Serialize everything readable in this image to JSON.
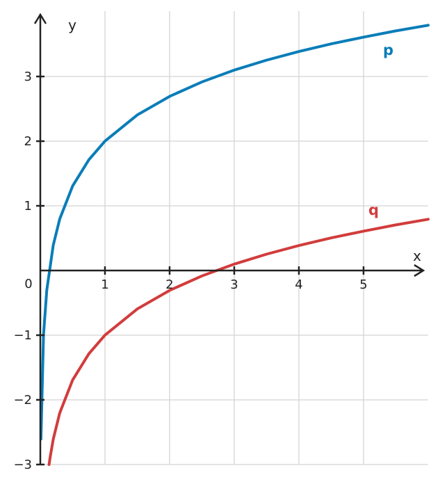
{
  "chart_data": {
    "type": "line",
    "title": "",
    "xlabel": "x",
    "ylabel": "y",
    "xlim": [
      0,
      6
    ],
    "ylim": [
      -3,
      4
    ],
    "x_ticks": [
      1,
      2,
      3,
      4,
      5
    ],
    "x_tick_labels": [
      "1",
      "2",
      "3",
      "4",
      "5"
    ],
    "y_ticks": [
      -3,
      -2,
      -1,
      1,
      2,
      3
    ],
    "y_tick_labels": [
      "−3",
      "−2",
      "−1",
      "1",
      "2",
      "3"
    ],
    "origin_label": "0",
    "grid": true,
    "series": [
      {
        "name": "p",
        "color": "#0a7db8",
        "x": [
          0.01,
          0.05,
          0.1,
          0.2,
          0.3,
          0.5,
          0.75,
          1,
          1.5,
          2,
          2.5,
          3,
          3.5,
          4,
          4.5,
          5,
          5.5,
          6
        ],
        "y": [
          -2.605,
          -0.996,
          -0.303,
          0.391,
          0.796,
          1.307,
          1.712,
          2.0,
          2.405,
          2.693,
          2.916,
          3.099,
          3.253,
          3.386,
          3.504,
          3.609,
          3.705,
          3.792
        ]
      },
      {
        "name": "q",
        "color": "#d23c3c",
        "x": [
          0.135,
          0.15,
          0.2,
          0.3,
          0.5,
          0.75,
          1,
          1.5,
          2,
          2.5,
          3,
          3.5,
          4,
          4.5,
          5,
          5.5,
          6
        ],
        "y": [
          -3.0,
          -2.897,
          -2.609,
          -2.204,
          -1.693,
          -1.288,
          -1.0,
          -0.595,
          -0.307,
          -0.084,
          0.099,
          0.253,
          0.386,
          0.504,
          0.609,
          0.705,
          0.792
        ]
      }
    ]
  }
}
